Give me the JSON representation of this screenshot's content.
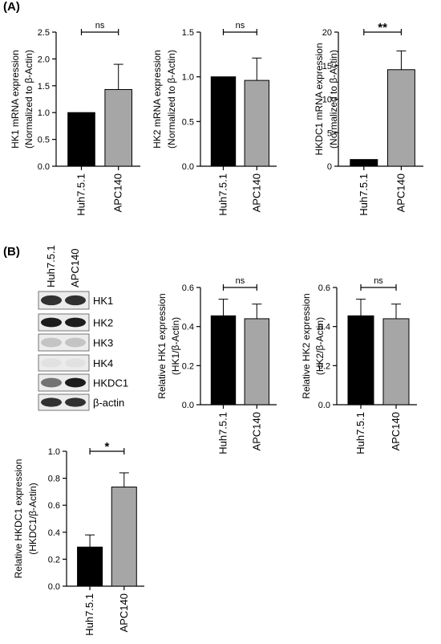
{
  "panels": [
    {
      "label": "(A)"
    },
    {
      "label": "(B)"
    }
  ],
  "blot": {
    "lanes": [
      "Huh7.5.1",
      "APC140"
    ],
    "proteins": [
      "HK1",
      "HK2",
      "HK3",
      "HK4",
      "HKDC1",
      "β-actin"
    ]
  },
  "chart_data": [
    {
      "type": "bar",
      "categories": [
        "Huh7.5.1",
        "APC140"
      ],
      "values": [
        1.0,
        1.43
      ],
      "errors": [
        0,
        0.47
      ],
      "ylabel": [
        "HK1 mRNA expression",
        "(Normalized to β-Actin)"
      ],
      "ylim": [
        0,
        2.5
      ],
      "yticks": [
        "0.0",
        "0.5",
        "1.0",
        "1.5",
        "2.0",
        "2.5"
      ],
      "significance": "ns",
      "colors": [
        "#000000",
        "#a6a6a6"
      ]
    },
    {
      "type": "bar",
      "categories": [
        "Huh7.5.1",
        "APC140"
      ],
      "values": [
        1.0,
        0.96
      ],
      "errors": [
        0,
        0.25
      ],
      "ylabel": [
        "HK2 mRNA expression",
        "(Normalized to β-Actin)"
      ],
      "ylim": [
        0,
        1.5
      ],
      "yticks": [
        "0.0",
        "0.5",
        "1.0",
        "1.5"
      ],
      "significance": "ns",
      "colors": [
        "#000000",
        "#a6a6a6"
      ]
    },
    {
      "type": "bar",
      "categories": [
        "Huh7.5.1",
        "APC140"
      ],
      "values": [
        1.0,
        14.4
      ],
      "errors": [
        0,
        2.8
      ],
      "ylabel": [
        "HKDC1 mRNA expression",
        "(Normalized to β-Actin)"
      ],
      "ylim": [
        0,
        20
      ],
      "yticks": [
        "0",
        "5",
        "10",
        "15",
        "20"
      ],
      "significance": "**",
      "colors": [
        "#000000",
        "#a6a6a6"
      ]
    },
    {
      "type": "bar",
      "categories": [
        "Huh7.5.1",
        "APC140"
      ],
      "values": [
        0.455,
        0.44
      ],
      "errors": [
        0.085,
        0.075
      ],
      "ylabel": [
        "Relative HK1 expression",
        "(HK1/β-Actin)"
      ],
      "ylim": [
        0,
        0.6
      ],
      "yticks": [
        "0.0",
        "0.2",
        "0.4",
        "0.6"
      ],
      "significance": "ns",
      "colors": [
        "#000000",
        "#a6a6a6"
      ]
    },
    {
      "type": "bar",
      "categories": [
        "Huh7.5.1",
        "APC140"
      ],
      "values": [
        0.455,
        0.44
      ],
      "errors": [
        0.085,
        0.075
      ],
      "ylabel": [
        "Relative HK2 expression",
        "(HK2/β-Actin)"
      ],
      "ylim": [
        0,
        0.6
      ],
      "yticks": [
        "0.0",
        "0.2",
        "0.4",
        "0.6"
      ],
      "significance": "ns",
      "colors": [
        "#000000",
        "#a6a6a6"
      ]
    },
    {
      "type": "bar",
      "categories": [
        "Huh7.5.1",
        "APC140"
      ],
      "values": [
        0.29,
        0.735
      ],
      "errors": [
        0.09,
        0.105
      ],
      "ylabel": [
        "Relative HKDC1 expression",
        "(HKDC1/β-Actin)"
      ],
      "ylim": [
        0,
        1.0
      ],
      "yticks": [
        "0.0",
        "0.2",
        "0.4",
        "0.6",
        "0.8",
        "1.0"
      ],
      "significance": "*",
      "colors": [
        "#000000",
        "#a6a6a6"
      ]
    }
  ]
}
